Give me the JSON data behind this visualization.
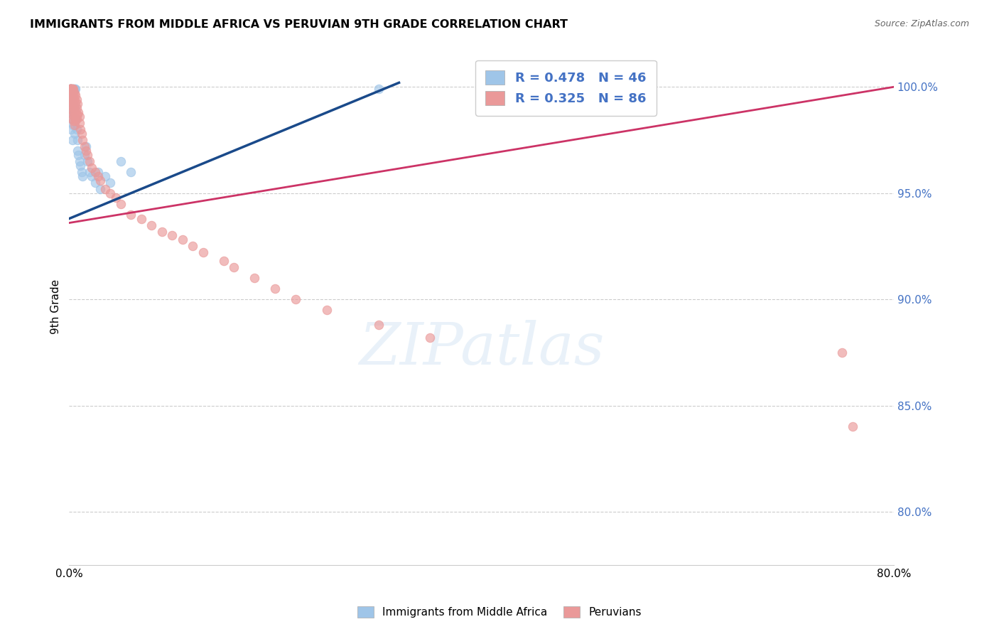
{
  "title": "IMMIGRANTS FROM MIDDLE AFRICA VS PERUVIAN 9TH GRADE CORRELATION CHART",
  "source": "Source: ZipAtlas.com",
  "ylabel": "9th Grade",
  "ytick_labels": [
    "80.0%",
    "85.0%",
    "90.0%",
    "95.0%",
    "100.0%"
  ],
  "ytick_values": [
    0.8,
    0.85,
    0.9,
    0.95,
    1.0
  ],
  "xlim": [
    0.0,
    0.8
  ],
  "ylim": [
    0.775,
    1.018
  ],
  "legend_r1": "R = 0.478   N = 46",
  "legend_r2": "R = 0.325   N = 86",
  "blue_color": "#9fc5e8",
  "pink_color": "#ea9999",
  "trendline_blue": "#1a4a8a",
  "trendline_pink": "#cc3366",
  "blue_scatter_x": [
    0.001,
    0.001,
    0.001,
    0.001,
    0.001,
    0.001,
    0.001,
    0.001,
    0.002,
    0.002,
    0.002,
    0.002,
    0.002,
    0.003,
    0.003,
    0.003,
    0.003,
    0.004,
    0.004,
    0.004,
    0.005,
    0.005,
    0.005,
    0.006,
    0.006,
    0.007,
    0.008,
    0.008,
    0.009,
    0.01,
    0.011,
    0.012,
    0.013,
    0.015,
    0.016,
    0.018,
    0.02,
    0.022,
    0.025,
    0.028,
    0.03,
    0.035,
    0.04,
    0.05,
    0.06,
    0.3
  ],
  "blue_scatter_y": [
    0.999,
    0.999,
    0.998,
    0.997,
    0.996,
    0.995,
    0.994,
    0.993,
    0.999,
    0.998,
    0.99,
    0.985,
    0.98,
    0.999,
    0.995,
    0.988,
    0.975,
    0.999,
    0.992,
    0.982,
    0.999,
    0.99,
    0.978,
    0.999,
    0.985,
    0.98,
    0.975,
    0.97,
    0.968,
    0.965,
    0.963,
    0.96,
    0.958,
    0.968,
    0.972,
    0.965,
    0.96,
    0.958,
    0.955,
    0.96,
    0.952,
    0.958,
    0.955,
    0.965,
    0.96,
    0.999
  ],
  "pink_scatter_x": [
    0.001,
    0.001,
    0.001,
    0.001,
    0.001,
    0.001,
    0.001,
    0.001,
    0.001,
    0.001,
    0.002,
    0.002,
    0.002,
    0.002,
    0.002,
    0.002,
    0.002,
    0.002,
    0.002,
    0.002,
    0.003,
    0.003,
    0.003,
    0.003,
    0.003,
    0.003,
    0.003,
    0.003,
    0.003,
    0.003,
    0.004,
    0.004,
    0.004,
    0.004,
    0.004,
    0.004,
    0.005,
    0.005,
    0.005,
    0.005,
    0.005,
    0.006,
    0.006,
    0.006,
    0.006,
    0.007,
    0.007,
    0.007,
    0.008,
    0.008,
    0.009,
    0.01,
    0.01,
    0.011,
    0.012,
    0.013,
    0.015,
    0.016,
    0.018,
    0.02,
    0.022,
    0.025,
    0.028,
    0.03,
    0.035,
    0.04,
    0.045,
    0.05,
    0.06,
    0.07,
    0.08,
    0.09,
    0.1,
    0.11,
    0.12,
    0.13,
    0.15,
    0.16,
    0.18,
    0.2,
    0.22,
    0.25,
    0.3,
    0.35,
    0.75,
    0.76
  ],
  "pink_scatter_y": [
    0.999,
    0.999,
    0.999,
    0.999,
    0.999,
    0.998,
    0.998,
    0.997,
    0.996,
    0.995,
    0.999,
    0.999,
    0.999,
    0.998,
    0.998,
    0.997,
    0.996,
    0.995,
    0.993,
    0.991,
    0.999,
    0.999,
    0.998,
    0.997,
    0.995,
    0.993,
    0.991,
    0.989,
    0.987,
    0.985,
    0.999,
    0.997,
    0.995,
    0.992,
    0.988,
    0.984,
    0.997,
    0.994,
    0.99,
    0.986,
    0.982,
    0.996,
    0.992,
    0.988,
    0.984,
    0.994,
    0.99,
    0.985,
    0.992,
    0.987,
    0.988,
    0.986,
    0.983,
    0.98,
    0.978,
    0.975,
    0.972,
    0.97,
    0.968,
    0.965,
    0.962,
    0.96,
    0.958,
    0.956,
    0.952,
    0.95,
    0.948,
    0.945,
    0.94,
    0.938,
    0.935,
    0.932,
    0.93,
    0.928,
    0.925,
    0.922,
    0.918,
    0.915,
    0.91,
    0.905,
    0.9,
    0.895,
    0.888,
    0.882,
    0.875,
    0.84
  ]
}
